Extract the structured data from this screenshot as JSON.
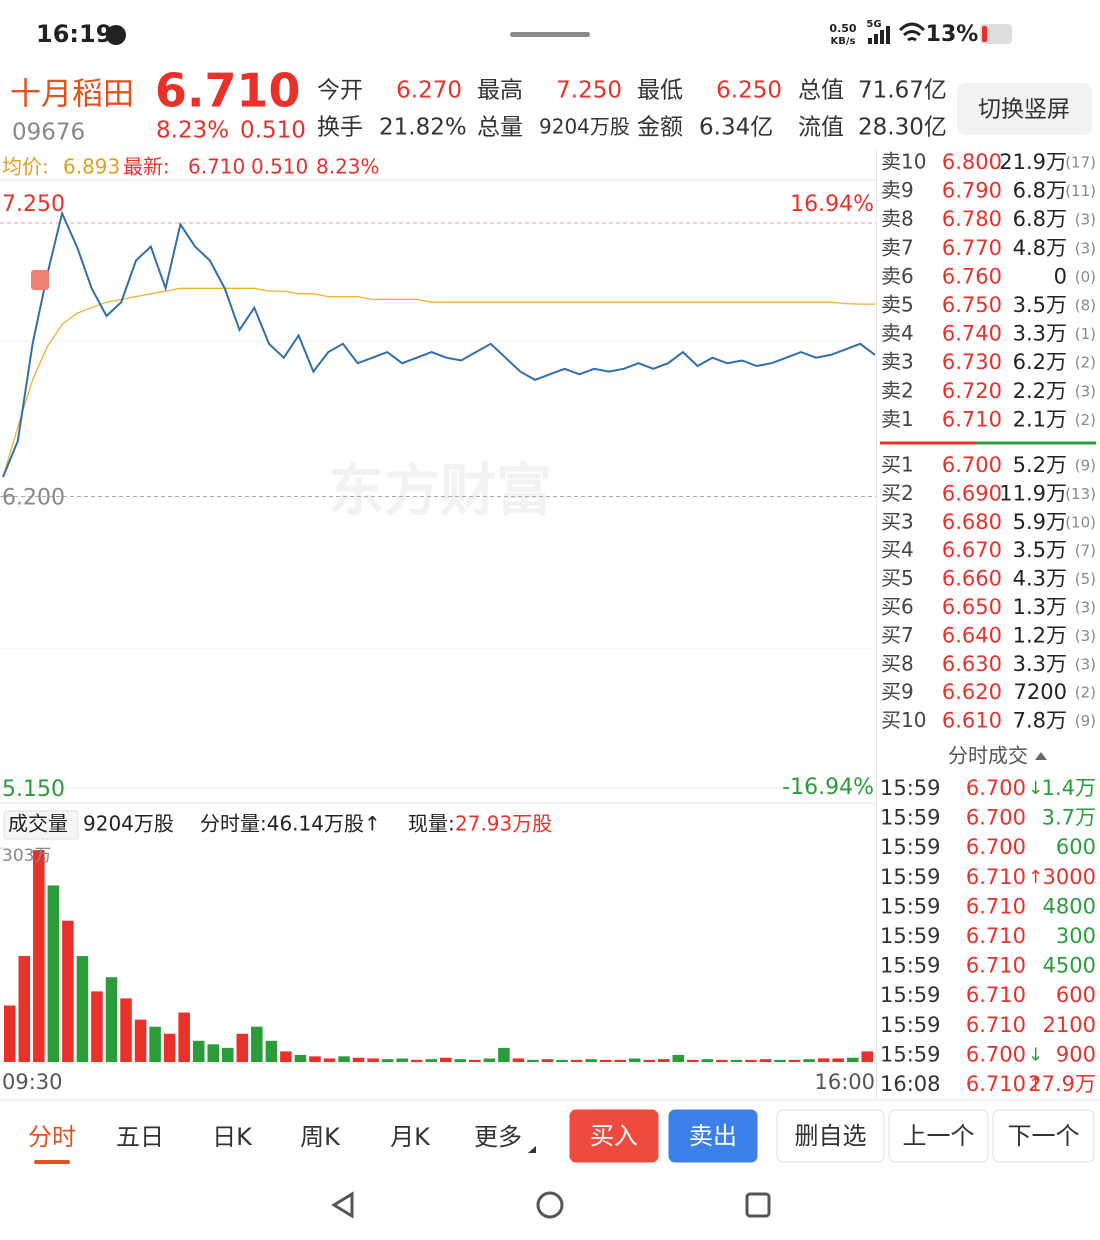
{
  "status": {
    "time": "16:19",
    "speed": "0.50",
    "speed_unit": "KB/s",
    "network": "5G",
    "battery": "13%"
  },
  "header": {
    "name": "十月稻田",
    "price": "6.710",
    "code": "09676",
    "change_pct": "8.23%",
    "change": "0.510",
    "button": "切换竖屏",
    "stats": [
      {
        "label": "今开",
        "value": "6.270"
      },
      {
        "label": "最高",
        "value": "7.250"
      },
      {
        "label": "最低",
        "value": "6.250"
      },
      {
        "label": "总值",
        "value": "71.67亿"
      },
      {
        "label": "换手",
        "value": "21.82%"
      },
      {
        "label": "总量",
        "value": "9204万股"
      },
      {
        "label": "金额",
        "value": "6.34亿"
      },
      {
        "label": "流值",
        "value": "28.30亿"
      }
    ]
  },
  "chart_data": [
    {
      "type": "line",
      "watermark": "东方财富",
      "latest": "6.710",
      "change": "0.510",
      "pct": "8.23%",
      "avg": "6.893",
      "ylim": [
        5.15,
        7.25
      ],
      "yticks": [
        {
          "value": 7.25,
          "label": "7.250"
        },
        {
          "value": 6.2,
          "label": "6.200"
        },
        {
          "value": 5.15,
          "label": "5.150"
        }
      ],
      "y2lim": [
        -16.94,
        16.94
      ],
      "y2ticks": [
        {
          "value": 16.94,
          "label": "16.94%"
        },
        {
          "value": -16.94,
          "label": "-16.94%"
        }
      ],
      "series": [
        {
          "name": "最新:",
          "color": "#2f6fad",
          "values": [
            6.27,
            6.4,
            6.75,
            7.0,
            7.22,
            7.1,
            6.95,
            6.85,
            6.9,
            7.05,
            7.1,
            6.95,
            7.18,
            7.1,
            7.05,
            6.95,
            6.8,
            6.88,
            6.75,
            6.7,
            6.78,
            6.65,
            6.72,
            6.75,
            6.68,
            6.7,
            6.72,
            6.68,
            6.7,
            6.72,
            6.7,
            6.69,
            6.72,
            6.75,
            6.7,
            6.65,
            6.62,
            6.64,
            6.66,
            6.64,
            6.66,
            6.65,
            6.66,
            6.68,
            6.66,
            6.68,
            6.72,
            6.67,
            6.7,
            6.68,
            6.69,
            6.67,
            6.68,
            6.7,
            6.72,
            6.7,
            6.71,
            6.73,
            6.75,
            6.71
          ]
        },
        {
          "name": "均价:",
          "color": "#f0b030",
          "values": [
            6.27,
            6.45,
            6.62,
            6.74,
            6.82,
            6.86,
            6.88,
            6.9,
            6.91,
            6.92,
            6.93,
            6.94,
            6.95,
            6.95,
            6.95,
            6.95,
            6.95,
            6.95,
            6.94,
            6.94,
            6.93,
            6.93,
            6.92,
            6.92,
            6.92,
            6.91,
            6.91,
            6.91,
            6.91,
            6.9,
            6.9,
            6.9,
            6.9,
            6.9,
            6.9,
            6.9,
            6.9,
            6.9,
            6.9,
            6.9,
            6.9,
            6.9,
            6.9,
            6.9,
            6.9,
            6.9,
            6.9,
            6.9,
            6.9,
            6.9,
            6.9,
            6.9,
            6.9,
            6.9,
            6.9,
            6.9,
            6.9,
            6.895,
            6.893,
            6.893
          ]
        }
      ]
    },
    {
      "type": "bar",
      "title": "成交量",
      "total": "9204万股",
      "interval": "分时量:46.14万股↑",
      "current_label": "现量:",
      "current": "27.93万股",
      "ylim": [
        0,
        303
      ],
      "yticks": [
        {
          "value": 303,
          "label": "303万"
        }
      ],
      "categories": [
        "09:30",
        null,
        null,
        null,
        null,
        null,
        null,
        null,
        null,
        null,
        null,
        null,
        null,
        null,
        null,
        null,
        null,
        null,
        null,
        null,
        null,
        null,
        null,
        null,
        null,
        null,
        null,
        null,
        null,
        null,
        null,
        null,
        null,
        null,
        null,
        null,
        null,
        null,
        null,
        null,
        null,
        null,
        null,
        null,
        null,
        null,
        null,
        null,
        null,
        null,
        null,
        null,
        null,
        null,
        null,
        null,
        null,
        null,
        null,
        "16:00"
      ],
      "values": [
        80,
        150,
        300,
        250,
        200,
        150,
        100,
        120,
        90,
        60,
        50,
        40,
        70,
        30,
        25,
        20,
        40,
        50,
        30,
        15,
        10,
        8,
        5,
        8,
        6,
        5,
        4,
        5,
        3,
        4,
        6,
        4,
        3,
        5,
        20,
        5,
        3,
        4,
        3,
        3,
        4,
        3,
        3,
        5,
        3,
        4,
        10,
        3,
        4,
        3,
        3,
        3,
        4,
        3,
        3,
        4,
        5,
        5,
        6,
        15
      ],
      "colors": [
        "#e8312a",
        "#e8312a",
        "#e8312a",
        "#2a9d3a",
        "#e8312a",
        "#2a9d3a",
        "#e8312a",
        "#2a9d3a",
        "#e8312a",
        "#e8312a",
        "#2a9d3a",
        "#e8312a",
        "#e8312a",
        "#2a9d3a",
        "#2a9d3a",
        "#2a9d3a",
        "#e8312a",
        "#2a9d3a",
        "#2a9d3a",
        "#e8312a",
        "#2a9d3a",
        "#e8312a",
        "#e8312a",
        "#2a9d3a",
        "#e8312a",
        "#e8312a",
        "#2a9d3a",
        "#2a9d3a",
        "#e8312a",
        "#2a9d3a",
        "#e8312a",
        "#2a9d3a",
        "#e8312a",
        "#2a9d3a",
        "#2a9d3a",
        "#e8312a",
        "#2a9d3a",
        "#e8312a",
        "#2a9d3a",
        "#e8312a",
        "#2a9d3a",
        "#e8312a",
        "#e8312a",
        "#2a9d3a",
        "#e8312a",
        "#e8312a",
        "#2a9d3a",
        "#e8312a",
        "#2a9d3a",
        "#e8312a",
        "#2a9d3a",
        "#e8312a",
        "#e8312a",
        "#2a9d3a",
        "#e8312a",
        "#2a9d3a",
        "#e8312a",
        "#e8312a",
        "#2a9d3a",
        "#e8312a"
      ]
    }
  ],
  "order_book": {
    "asks": [
      {
        "label": "卖10",
        "price": "6.800",
        "volume": "21.9万",
        "count": "(17)"
      },
      {
        "label": "卖9",
        "price": "6.790",
        "volume": "6.8万",
        "count": "(11)"
      },
      {
        "label": "卖8",
        "price": "6.780",
        "volume": "6.8万",
        "count": "(3)"
      },
      {
        "label": "卖7",
        "price": "6.770",
        "volume": "4.8万",
        "count": "(3)"
      },
      {
        "label": "卖6",
        "price": "6.760",
        "volume": "0",
        "count": "(0)"
      },
      {
        "label": "卖5",
        "price": "6.750",
        "volume": "3.5万",
        "count": "(8)"
      },
      {
        "label": "卖4",
        "price": "6.740",
        "volume": "3.3万",
        "count": "(1)"
      },
      {
        "label": "卖3",
        "price": "6.730",
        "volume": "6.2万",
        "count": "(2)"
      },
      {
        "label": "卖2",
        "price": "6.720",
        "volume": "2.2万",
        "count": "(3)"
      },
      {
        "label": "卖1",
        "price": "6.710",
        "volume": "2.1万",
        "count": "(2)"
      }
    ],
    "bids": [
      {
        "label": "买1",
        "price": "6.700",
        "volume": "5.2万",
        "count": "(9)"
      },
      {
        "label": "买2",
        "price": "6.690",
        "volume": "11.9万",
        "count": "(13)"
      },
      {
        "label": "买3",
        "price": "6.680",
        "volume": "5.9万",
        "count": "(10)"
      },
      {
        "label": "买4",
        "price": "6.670",
        "volume": "3.5万",
        "count": "(7)"
      },
      {
        "label": "买5",
        "price": "6.660",
        "volume": "4.3万",
        "count": "(5)"
      },
      {
        "label": "买6",
        "price": "6.650",
        "volume": "1.3万",
        "count": "(3)"
      },
      {
        "label": "买7",
        "price": "6.640",
        "volume": "1.2万",
        "count": "(3)"
      },
      {
        "label": "买8",
        "price": "6.630",
        "volume": "3.3万",
        "count": "(3)"
      },
      {
        "label": "买9",
        "price": "6.620",
        "volume": "7200",
        "count": "(2)"
      },
      {
        "label": "买10",
        "price": "6.610",
        "volume": "7.8万",
        "count": "(9)"
      }
    ]
  },
  "trades": {
    "title": "分时成交",
    "rows": [
      {
        "time": "15:59",
        "price": "6.700",
        "arrow": "↓",
        "volume": "1.4万",
        "color": "#2a9d3a"
      },
      {
        "time": "15:59",
        "price": "6.700",
        "arrow": "",
        "volume": "3.7万",
        "color": "#2a9d3a"
      },
      {
        "time": "15:59",
        "price": "6.700",
        "arrow": "",
        "volume": "600",
        "color": "#2a9d3a"
      },
      {
        "time": "15:59",
        "price": "6.710",
        "arrow": "↑",
        "volume": "3000",
        "color": "#e8312a"
      },
      {
        "time": "15:59",
        "price": "6.710",
        "arrow": "",
        "volume": "4800",
        "color": "#2a9d3a"
      },
      {
        "time": "15:59",
        "price": "6.710",
        "arrow": "",
        "volume": "300",
        "color": "#2a9d3a"
      },
      {
        "time": "15:59",
        "price": "6.710",
        "arrow": "",
        "volume": "4500",
        "color": "#2a9d3a"
      },
      {
        "time": "15:59",
        "price": "6.710",
        "arrow": "",
        "volume": "600",
        "color": "#e8312a"
      },
      {
        "time": "15:59",
        "price": "6.710",
        "arrow": "",
        "volume": "2100",
        "color": "#e8312a"
      },
      {
        "time": "15:59",
        "price": "6.700",
        "arrow": "↓",
        "volume": "900",
        "color": "#e8312a"
      },
      {
        "time": "16:08",
        "price": "6.710",
        "arrow": "↑",
        "volume": "27.9万",
        "color": "#e8312a"
      }
    ]
  },
  "tabs": [
    "分时",
    "五日",
    "日K",
    "周K",
    "月K",
    "更多"
  ],
  "actions": [
    "买入",
    "卖出",
    "删自选",
    "上一个",
    "下一个"
  ]
}
